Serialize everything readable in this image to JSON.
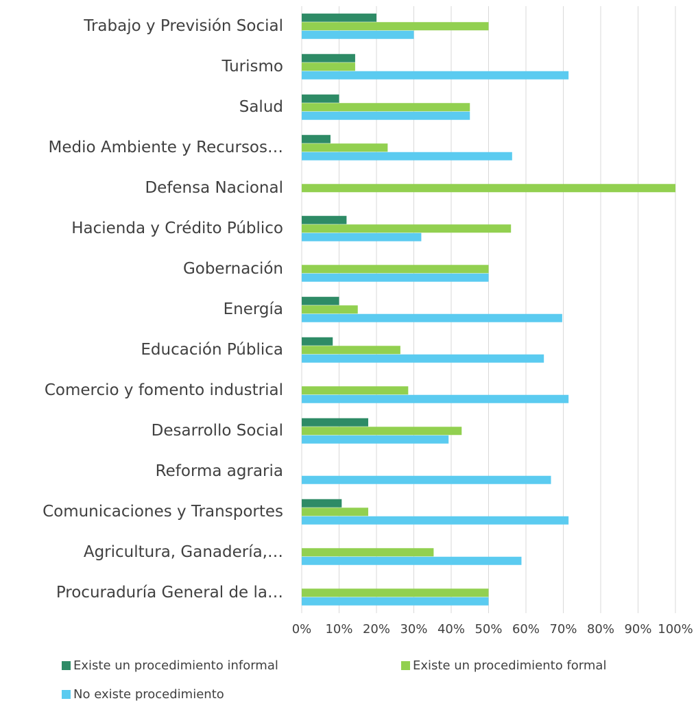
{
  "chart_data": {
    "type": "bar",
    "orientation": "horizontal",
    "categories": [
      "Trabajo y Previsión Social",
      "Turismo",
      "Salud",
      "Medio Ambiente y Recursos…",
      "Defensa Nacional",
      "Hacienda y Crédito Público",
      "Gobernación",
      "Energía",
      "Educación Pública",
      "Comercio y fomento industrial",
      "Desarrollo Social",
      "Reforma agraria",
      "Comunicaciones y Transportes",
      "Agricultura, Ganadería,…",
      "Procuraduría General de la…"
    ],
    "series": [
      {
        "name": "Existe un procedimiento informal",
        "color": "#2e8b66",
        "values": [
          20,
          14.3,
          10,
          7.7,
          0,
          12,
          0,
          10,
          8.3,
          0,
          17.8,
          0,
          10.7,
          0,
          0
        ]
      },
      {
        "name": "Existe un procedimiento formal",
        "color": "#92d050",
        "values": [
          50,
          14.3,
          45,
          23,
          100,
          56,
          50,
          15,
          26.4,
          28.5,
          42.8,
          0,
          17.8,
          35.3,
          50
        ]
      },
      {
        "name": "No existe procedimiento",
        "color": "#5bcbf0",
        "values": [
          30,
          71.4,
          45,
          56.3,
          0,
          32,
          50,
          69.7,
          64.8,
          71.4,
          39.3,
          66.7,
          71.4,
          58.8,
          50
        ]
      }
    ],
    "xlim": [
      0,
      100
    ],
    "xticks": [
      {
        "value": 0,
        "label": "0%"
      },
      {
        "value": 10,
        "label": "10%"
      },
      {
        "value": 20,
        "label": "20%"
      },
      {
        "value": 30,
        "label": "30%"
      },
      {
        "value": 40,
        "label": "40%"
      },
      {
        "value": 50,
        "label": "50%"
      },
      {
        "value": 60,
        "label": "60%"
      },
      {
        "value": 70,
        "label": "70%"
      },
      {
        "value": 80,
        "label": "80%"
      },
      {
        "value": 90,
        "label": "90%"
      },
      {
        "value": 100,
        "label": "100%"
      }
    ],
    "grid": true,
    "legend": "bottom"
  }
}
